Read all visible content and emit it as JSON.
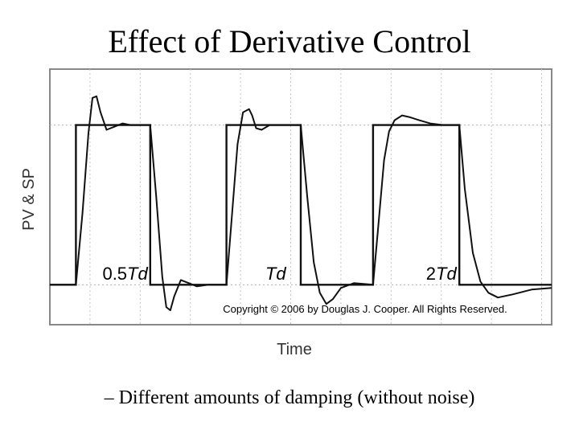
{
  "slide": {
    "title": "Effect of Derivative Control",
    "subtitle": "– Different amounts of damping (without noise)"
  },
  "chart_data": {
    "type": "line",
    "ylabel": "PV & SP",
    "xlabel": "Time",
    "grid": true,
    "ylim": [
      -0.25,
      1.35
    ],
    "xlim": [
      0,
      100
    ],
    "series": [
      {
        "name": "SP",
        "x": [
          0,
          5.2,
          5.2,
          20,
          20,
          35.2,
          35.2,
          50,
          50,
          64.4,
          64.4,
          81.6,
          81.6,
          100
        ],
        "y": [
          0,
          0,
          1,
          1,
          0,
          0,
          1,
          1,
          0,
          0,
          1,
          1,
          0,
          0
        ]
      },
      {
        "name": "PV",
        "x": [
          0,
          5.2,
          6.5,
          7.7,
          8.5,
          9.3,
          10.1,
          11.3,
          12.9,
          14.5,
          16.1,
          20,
          21.2,
          22.4,
          23.2,
          24,
          24.8,
          26.1,
          27.7,
          29.3,
          31.6,
          35.2,
          36.2,
          37.4,
          38.5,
          39.7,
          40.3,
          41.1,
          42.2,
          43.8,
          45.4,
          50,
          51.3,
          52.6,
          53.8,
          55.1,
          56.4,
          58,
          60.6,
          64.4,
          65.4,
          66.6,
          67.6,
          68.7,
          70.2,
          71.6,
          73.6,
          75.8,
          78.4,
          81.6,
          82.7,
          84.3,
          85.8,
          87.4,
          89.3,
          92.3,
          96,
          100
        ],
        "y": [
          0,
          0,
          0.45,
          0.95,
          1.17,
          1.18,
          1.08,
          0.97,
          0.99,
          1.01,
          1,
          1,
          0.55,
          0.05,
          -0.14,
          -0.16,
          -0.07,
          0.03,
          0.01,
          -0.01,
          0,
          0,
          0.4,
          0.88,
          1.08,
          1.1,
          1.06,
          0.98,
          0.97,
          1,
          1,
          1,
          0.55,
          0.14,
          -0.05,
          -0.12,
          -0.09,
          -0.02,
          0.01,
          0,
          0.35,
          0.78,
          0.96,
          1.03,
          1.06,
          1.05,
          1.03,
          1.01,
          1,
          1,
          0.6,
          0.2,
          0.02,
          -0.05,
          -0.08,
          -0.06,
          -0.03,
          -0.02
        ]
      }
    ],
    "annotations": [
      {
        "text": "0.5",
        "italic_suffix": "Td",
        "x": 15
      },
      {
        "text": "",
        "italic_suffix": "Td",
        "x": 45
      },
      {
        "text": "2",
        "italic_suffix": "Td",
        "x": 78
      }
    ],
    "copyright": "Copyright © 2006 by Douglas J. Cooper. All Rights Reserved."
  }
}
